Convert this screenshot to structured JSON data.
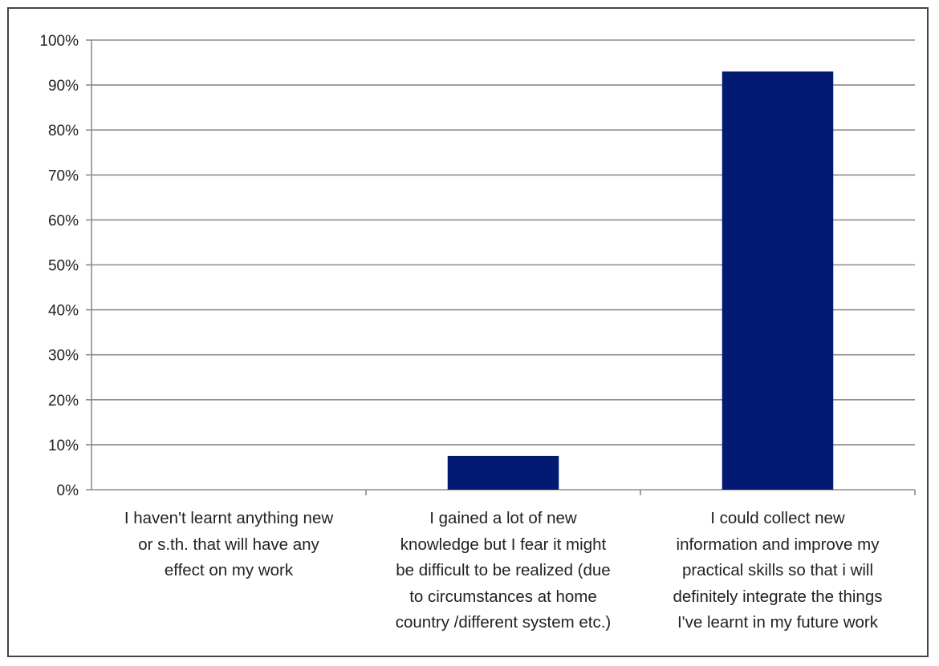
{
  "chart_data": {
    "type": "bar",
    "categories": [
      "I haven't learnt anything new or s.th. that will have any effect on my work",
      "I gained a lot of new knowledge but I fear it might be difficult to be realized (due to circumstances at home country /different system etc.)",
      "I could collect new information and improve my practical skills so that i will definitely integrate the things I've learnt in my future work"
    ],
    "category_lines": [
      [
        "I haven't learnt anything new",
        "or s.th. that will have any",
        "effect on my work"
      ],
      [
        "I gained a lot of new",
        "knowledge but I fear it might",
        "be difficult to be realized (due",
        "to circumstances at home",
        "country /different system etc.)"
      ],
      [
        "I could collect new",
        "information and improve my",
        "practical skills so that i will",
        "definitely integrate the things",
        "I've learnt in my future work"
      ]
    ],
    "values": [
      0,
      7.5,
      93
    ],
    "ylim": [
      0,
      100
    ],
    "yticks": [
      "0%",
      "10%",
      "20%",
      "30%",
      "40%",
      "50%",
      "60%",
      "70%",
      "80%",
      "90%",
      "100%"
    ],
    "title": "",
    "xlabel": "",
    "ylabel": "",
    "grid": true,
    "legend": "none",
    "bar_color": "#021A72",
    "grid_color": "#8c8c8c"
  }
}
